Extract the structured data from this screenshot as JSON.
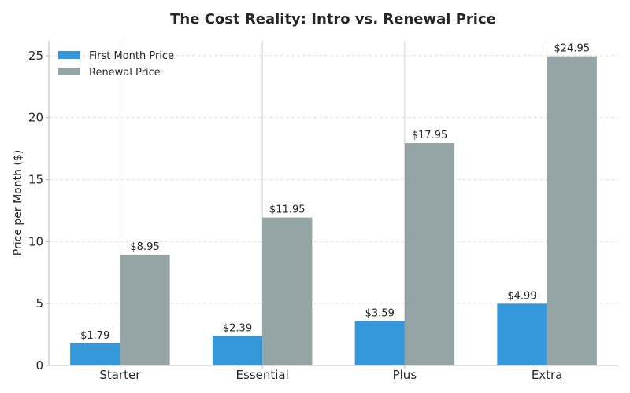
{
  "chart_data": {
    "type": "bar",
    "title": "The Cost Reality: Intro vs. Renewal Price",
    "xlabel": "",
    "ylabel": "Price per Month ($)",
    "categories": [
      "Starter",
      "Essential",
      "Plus",
      "Extra"
    ],
    "series": [
      {
        "name": "First Month Price",
        "color": "#3498db",
        "values": [
          1.79,
          2.39,
          3.59,
          4.99
        ],
        "labels": [
          "$1.79",
          "$2.39",
          "$3.59",
          "$4.99"
        ]
      },
      {
        "name": "Renewal Price",
        "color": "#95a5a6",
        "values": [
          8.95,
          11.95,
          17.95,
          24.95
        ],
        "labels": [
          "$8.95",
          "$11.95",
          "$17.95",
          "$24.95"
        ]
      }
    ],
    "ylim": [
      0,
      26.2
    ],
    "yticks": [
      0,
      5,
      10,
      15,
      20,
      25
    ],
    "grid": "y-dashed",
    "legend": "top-left"
  }
}
